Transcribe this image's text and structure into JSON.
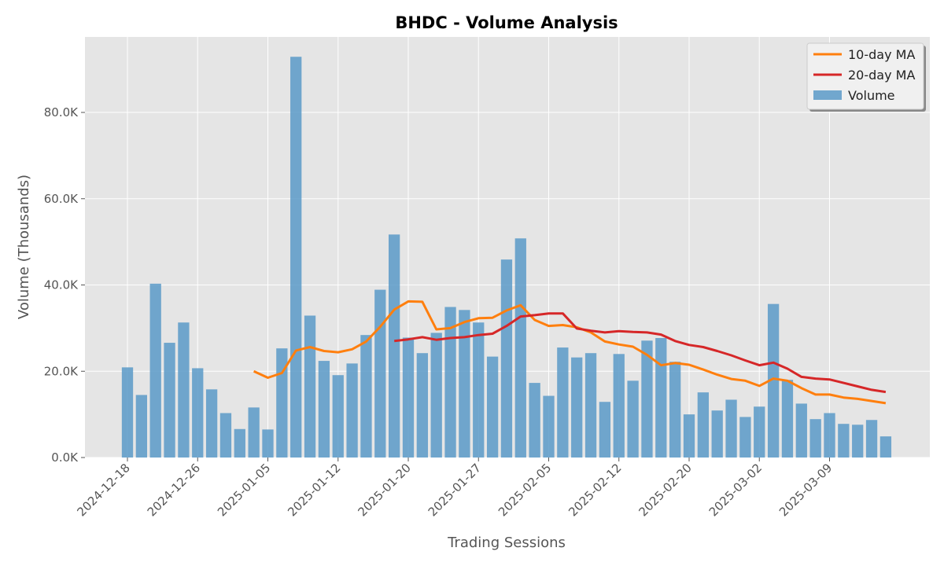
{
  "chart_data": {
    "type": "bar",
    "title": "BHDC - Volume Analysis",
    "xlabel": "Trading Sessions",
    "ylabel": "Volume (Thousands)",
    "ylim": [
      0,
      97500
    ],
    "y_ticks": [
      0,
      20000,
      40000,
      60000,
      80000
    ],
    "y_tick_labels": [
      "0.0K",
      "20.0K",
      "40.0K",
      "60.0K",
      "80.0K"
    ],
    "x_ticks": [
      {
        "index": 0,
        "label": "2024-12-18"
      },
      {
        "index": 5,
        "label": "2024-12-26"
      },
      {
        "index": 10,
        "label": "2025-01-05"
      },
      {
        "index": 15,
        "label": "2025-01-12"
      },
      {
        "index": 20,
        "label": "2025-01-20"
      },
      {
        "index": 25,
        "label": "2025-01-27"
      },
      {
        "index": 30,
        "label": "2025-02-05"
      },
      {
        "index": 35,
        "label": "2025-02-12"
      },
      {
        "index": 40,
        "label": "2025-02-20"
      },
      {
        "index": 45,
        "label": "2025-03-02"
      },
      {
        "index": 50,
        "label": "2025-03-09"
      }
    ],
    "grid": true,
    "legend_position": "top-right",
    "series": [
      {
        "name": "Volume",
        "kind": "bar",
        "color": "#5b9ac8",
        "values": [
          20900,
          14500,
          40300,
          26600,
          31300,
          20700,
          15800,
          10300,
          6600,
          11600,
          6500,
          25300,
          92900,
          32900,
          22400,
          19100,
          21800,
          28400,
          38900,
          51700,
          27800,
          24200,
          28900,
          34900,
          34200,
          31300,
          23400,
          45900,
          50800,
          17300,
          14300,
          25500,
          23200,
          24200,
          12900,
          24000,
          17800,
          27100,
          27700,
          22200,
          10000,
          15100,
          10900,
          13400,
          9400,
          11800,
          35600,
          18000,
          12500,
          8900,
          10300,
          7800,
          7600,
          8700,
          4900
        ]
      },
      {
        "name": "10-day MA",
        "kind": "line",
        "color": "#ff7f0e",
        "values": [
          null,
          null,
          null,
          null,
          null,
          null,
          null,
          null,
          null,
          20000,
          18500,
          19600,
          24800,
          25600,
          24700,
          24400,
          25100,
          26900,
          30300,
          34300,
          36200,
          36100,
          29700,
          30000,
          31400,
          32300,
          32400,
          34100,
          35300,
          31900,
          30500,
          30700,
          30200,
          29000,
          26900,
          26200,
          25700,
          23800,
          21400,
          21900,
          21500,
          20400,
          19200,
          18200,
          17800,
          16600,
          18300,
          17800,
          16100,
          14600,
          14600,
          13900,
          13600,
          13100,
          12600
        ]
      },
      {
        "name": "20-day MA",
        "kind": "line",
        "color": "#d62728",
        "values": [
          null,
          null,
          null,
          null,
          null,
          null,
          null,
          null,
          null,
          null,
          null,
          null,
          null,
          null,
          null,
          null,
          null,
          null,
          null,
          27000,
          27400,
          27900,
          27300,
          27700,
          27900,
          28400,
          28700,
          30500,
          32700,
          33000,
          33400,
          33400,
          29900,
          29400,
          29000,
          29300,
          29100,
          29000,
          28500,
          27000,
          26100,
          25600,
          24700,
          23700,
          22500,
          21400,
          22000,
          20600,
          18700,
          18300,
          18100,
          17300,
          16500,
          15700,
          15200
        ]
      }
    ]
  }
}
